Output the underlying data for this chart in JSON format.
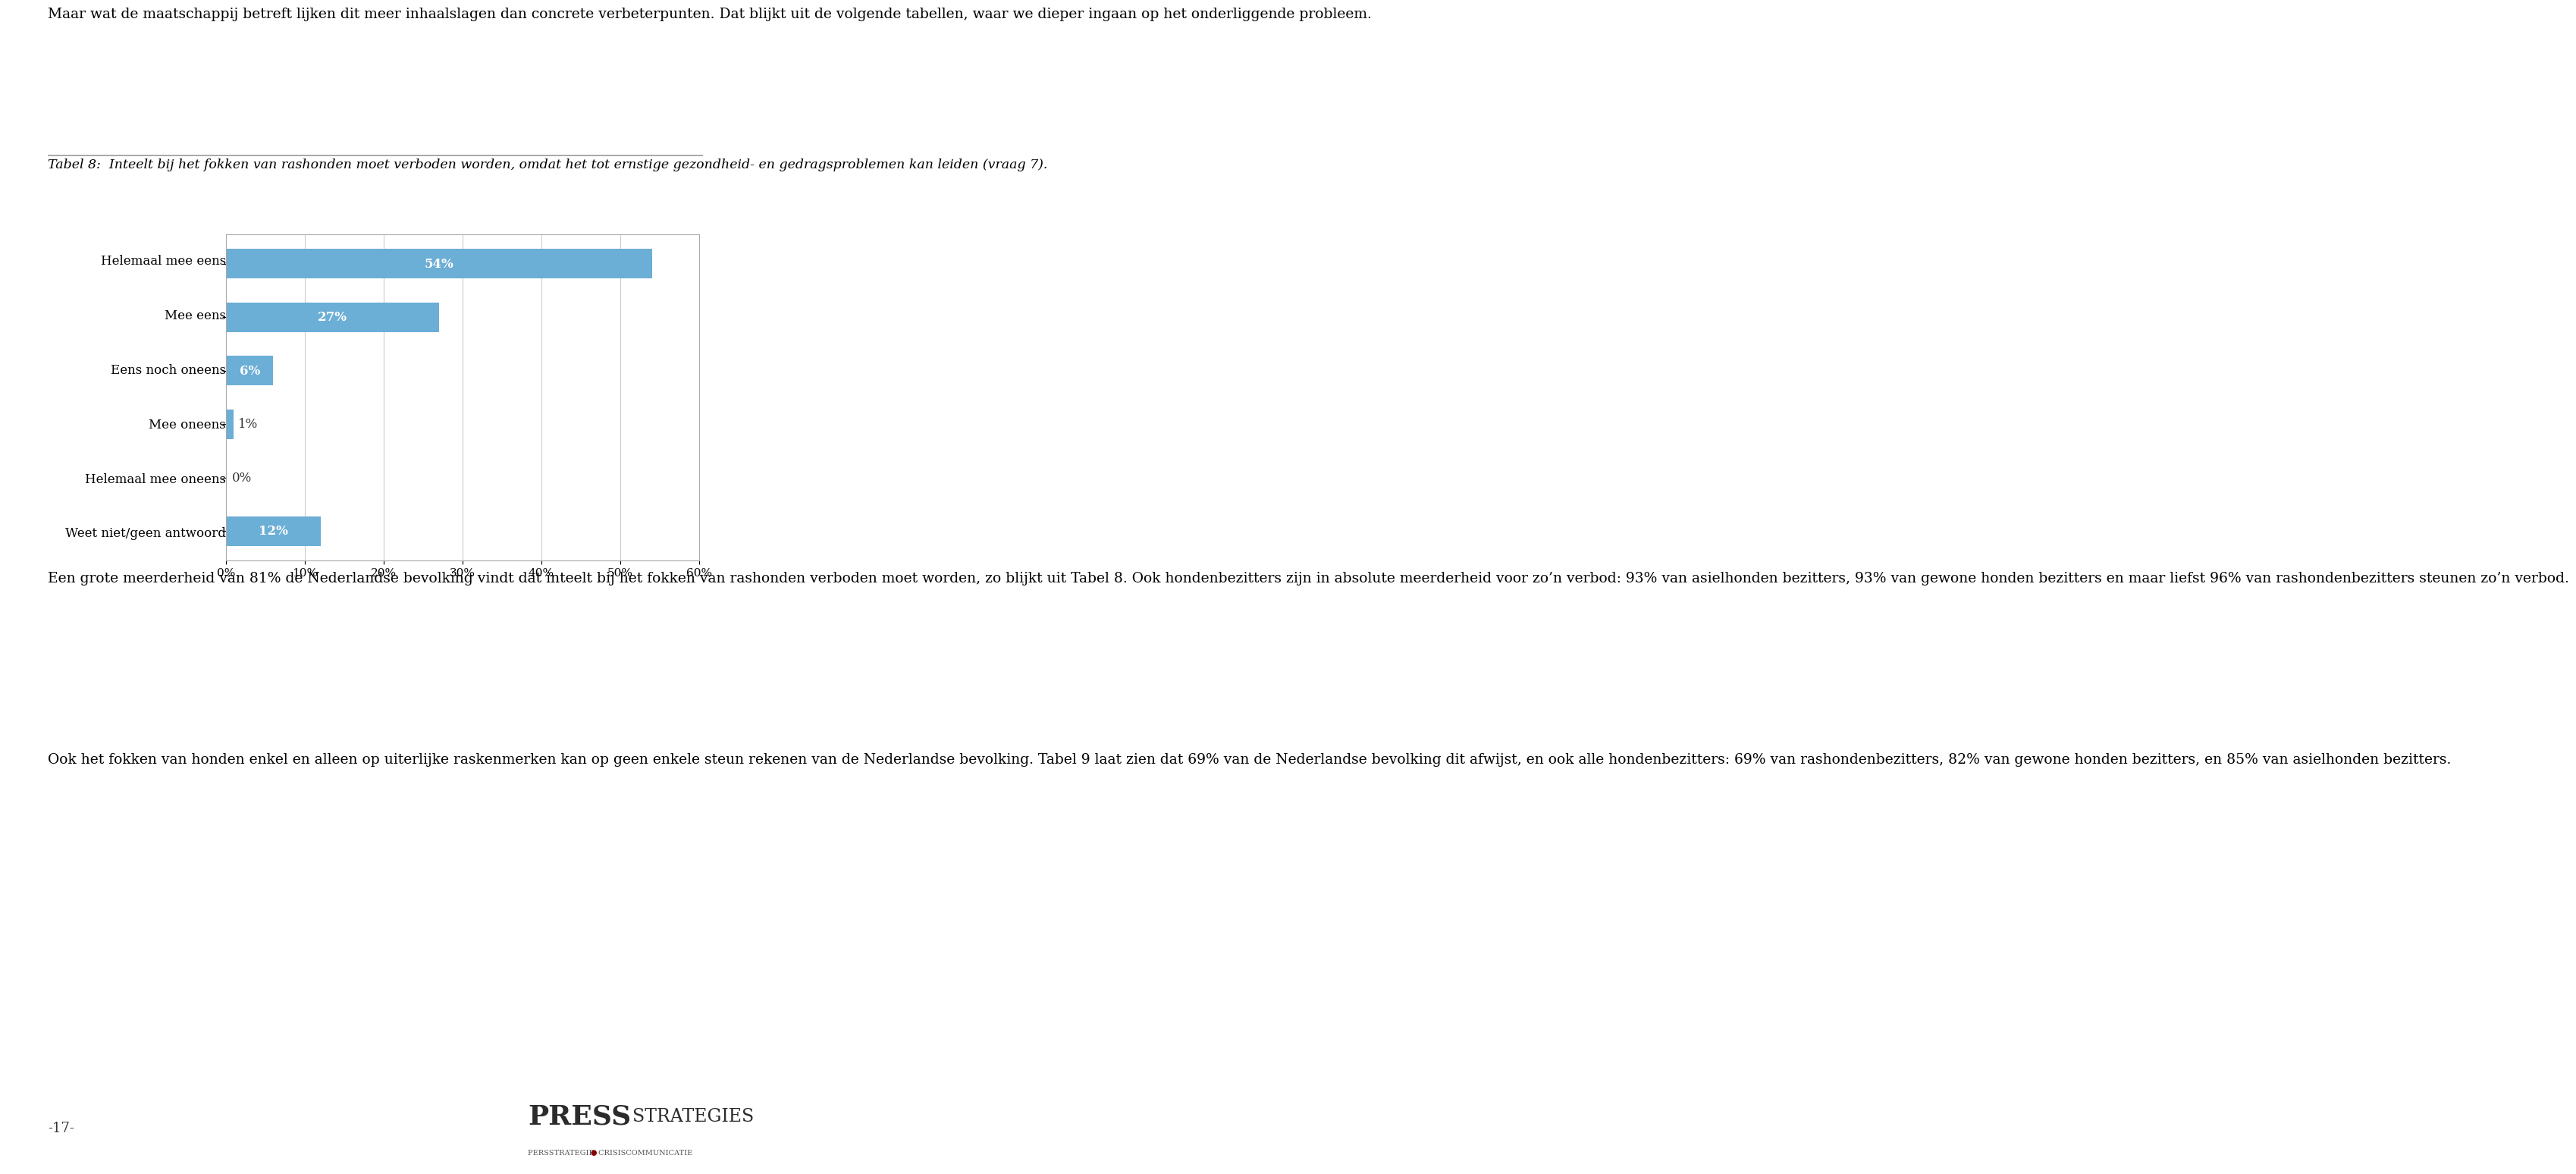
{
  "page_background": "#ffffff",
  "text_color": "#000000",
  "top_paragraph": "Maar wat de maatschappij betreft lijken dit meer inhaalslagen dan concrete verbeterpunten. Dat blijkt uit de volgende tabellen, waar we dieper ingaan op het onderliggende probleem.",
  "table_caption": "Tabel 8:  Inteelt bij het fokken van rashonden moet verboden worden, omdat het tot ernstige gezondheid- en gedragsproblemen kan leiden (vraag 7).",
  "categories": [
    "Weet niet/geen antwoord",
    "Helemaal mee oneens",
    "Mee oneens",
    "Eens noch oneens",
    "Mee eens",
    "Helemaal mee eens"
  ],
  "values": [
    12,
    0,
    1,
    6,
    27,
    54
  ],
  "bar_color": "#6baed6",
  "xlim": [
    0,
    60
  ],
  "xtick_labels": [
    "0%",
    "10%",
    "20%",
    "30%",
    "40%",
    "50%",
    "60%"
  ],
  "xtick_values": [
    0,
    10,
    20,
    30,
    40,
    50,
    60
  ],
  "bottom_paragraph1": "Een grote meerderheid van 81% de Nederlandse bevolking vindt dat inteelt bij het fokken van rashonden verboden moet worden, zo blijkt uit Tabel 8. Ook hondenbezitters zijn in absolute meerderheid voor zo’n verbod: 93% van asielhonden bezitters, 93% van gewone honden bezitters en maar liefst 96% van rashondenbezitters steunen zo’n verbod.",
  "bottom_paragraph2": "Ook het fokken van honden enkel en alleen op uiterlijke raskenmerken kan op geen enkele steun rekenen van de Nederlandse bevolking. Tabel 9 laat zien dat 69% van de Nederlandse bevolking dit afwijst, en ook alle hondenbezitters: 69% van rashondenbezitters, 82% van gewone honden bezitters, en 85% van asielhonden bezitters.",
  "page_number": "-17-",
  "logo_text_press": "PRESS",
  "logo_text_strategies": "STRATEGIES",
  "logo_subtext_left": "PERSSTRATEGIE ",
  "logo_subtext_dot": "●",
  "logo_subtext_right": " CRISISCOMMUNICATIE",
  "separator_color": "#999999",
  "chart_border_color": "#aaaaaa",
  "grid_color": "#cccccc"
}
